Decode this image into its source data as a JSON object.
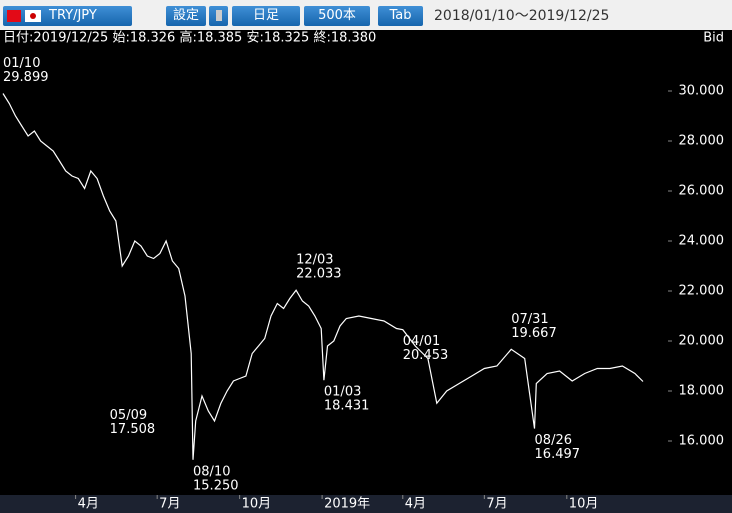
{
  "toolbar": {
    "pair": "TRY/JPY",
    "settings": "設定",
    "timeframe": "日足",
    "bars": "500本",
    "tab": "Tab",
    "range": "2018/01/10〜2019/12/25"
  },
  "info": {
    "text": "日付:2019/12/25 始:18.326 高:18.385 安:18.325 終:18.380",
    "price_type": "Bid"
  },
  "chart_data": {
    "type": "line",
    "x": [
      "2018/01/10",
      "2018/01/17",
      "2018/01/24",
      "2018/01/31",
      "2018/02/07",
      "2018/02/14",
      "2018/02/21",
      "2018/02/28",
      "2018/03/07",
      "2018/03/14",
      "2018/03/21",
      "2018/03/28",
      "2018/04/04",
      "2018/04/11",
      "2018/04/18",
      "2018/04/25",
      "2018/05/02",
      "2018/05/09",
      "2018/05/16",
      "2018/05/23",
      "2018/05/30",
      "2018/06/06",
      "2018/06/13",
      "2018/06/20",
      "2018/06/27",
      "2018/07/04",
      "2018/07/11",
      "2018/07/18",
      "2018/07/25",
      "2018/08/01",
      "2018/08/08",
      "2018/08/10",
      "2018/08/13",
      "2018/08/20",
      "2018/08/27",
      "2018/09/03",
      "2018/09/10",
      "2018/09/17",
      "2018/09/24",
      "2018/10/01",
      "2018/10/08",
      "2018/10/15",
      "2018/10/22",
      "2018/10/29",
      "2018/11/05",
      "2018/11/12",
      "2018/11/19",
      "2018/11/26",
      "2018/12/03",
      "2018/12/10",
      "2018/12/17",
      "2018/12/24",
      "2018/12/31",
      "2019/01/03",
      "2019/01/07",
      "2019/01/14",
      "2019/01/21",
      "2019/01/28",
      "2019/02/11",
      "2019/02/25",
      "2019/03/11",
      "2019/03/25",
      "2019/04/01",
      "2019/04/15",
      "2019/04/29",
      "2019/05/09",
      "2019/05/20",
      "2019/06/03",
      "2019/06/17",
      "2019/07/01",
      "2019/07/15",
      "2019/07/31",
      "2019/08/15",
      "2019/08/26",
      "2019/08/28",
      "2019/09/09",
      "2019/09/23",
      "2019/10/07",
      "2019/10/21",
      "2019/11/04",
      "2019/11/18",
      "2019/12/02",
      "2019/12/16",
      "2019/12/25"
    ],
    "series": [
      {
        "name": "TRY/JPY",
        "color": "#ffffff",
        "values": [
          29.899,
          29.5,
          29.0,
          28.6,
          28.2,
          28.4,
          28.0,
          27.8,
          27.6,
          27.2,
          26.8,
          26.6,
          26.5,
          26.1,
          26.8,
          26.5,
          25.8,
          25.2,
          24.8,
          23.0,
          23.4,
          24.0,
          23.8,
          23.4,
          23.3,
          23.5,
          24.0,
          23.2,
          22.9,
          21.8,
          19.5,
          15.25,
          16.8,
          17.8,
          17.2,
          16.8,
          17.5,
          18.0,
          18.4,
          18.5,
          18.6,
          19.5,
          19.8,
          20.1,
          21.0,
          21.5,
          21.3,
          21.7,
          22.033,
          21.6,
          21.4,
          21.0,
          20.5,
          18.431,
          19.8,
          20.0,
          20.6,
          20.9,
          21.0,
          20.9,
          20.8,
          20.5,
          20.453,
          19.8,
          19.3,
          17.508,
          18.0,
          18.3,
          18.6,
          18.9,
          19.0,
          19.667,
          19.3,
          16.497,
          18.3,
          18.7,
          18.8,
          18.4,
          18.7,
          18.9,
          18.9,
          19.0,
          18.7,
          18.38
        ]
      }
    ],
    "xlim": [
      "2018/01/10",
      "2019/12/25"
    ],
    "xticks": [
      {
        "value": "2018/04/01",
        "label": "4月"
      },
      {
        "value": "2018/07/01",
        "label": "7月"
      },
      {
        "value": "2018/10/01",
        "label": "10月"
      },
      {
        "value": "2019/01/01",
        "label": "2019年"
      },
      {
        "value": "2019/04/01",
        "label": "4月"
      },
      {
        "value": "2019/07/01",
        "label": "7月"
      },
      {
        "value": "2019/10/01",
        "label": "10月"
      }
    ],
    "ylim": [
      13.84,
      31.72
    ],
    "yticks": [
      {
        "value": 16,
        "label": "16.000"
      },
      {
        "value": 18,
        "label": "18.000"
      },
      {
        "value": 20,
        "label": "20.000"
      },
      {
        "value": 22,
        "label": "22.000"
      },
      {
        "value": 24,
        "label": "24.000"
      },
      {
        "value": 26,
        "label": "26.000"
      },
      {
        "value": 28,
        "label": "28.000"
      },
      {
        "value": 30,
        "label": "30.000"
      }
    ],
    "annotations": [
      {
        "label": "01/10",
        "value": 29.899,
        "value_label": "29.899"
      },
      {
        "label": "08/10",
        "value": 15.25,
        "value_label": "15.250"
      },
      {
        "label": "12/03",
        "value": 22.033,
        "value_label": "22.033"
      },
      {
        "label": "01/03",
        "value": 18.431,
        "value_label": "18.431"
      },
      {
        "label": "04/01",
        "value": 20.453,
        "value_label": "20.453"
      },
      {
        "label": "05/09",
        "value": 17.508,
        "value_label": "17.508"
      },
      {
        "label": "07/31",
        "value": 19.667,
        "value_label": "19.667"
      },
      {
        "label": "08/26",
        "value": 16.497,
        "value_label": "16.497"
      }
    ]
  }
}
